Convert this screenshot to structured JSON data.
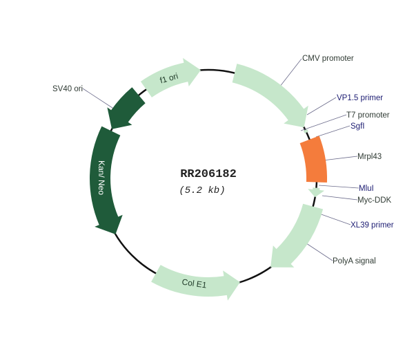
{
  "plasmid": {
    "name": "RR206182",
    "size": "(5.2 kb)"
  },
  "features": {
    "f1_ori": "f1 ori",
    "kan_neo": "Kan/ Neo",
    "col_e1": "Col E1"
  },
  "labels": {
    "sv40_ori": "SV40 ori",
    "cmv_promoter": "CMV promoter",
    "vp15_primer": "VP1.5 primer",
    "t7_promoter": "T7 promoter",
    "sgfi": "SgfI",
    "mrpl43": "Mrpl43",
    "mlui": "MluI",
    "myc_ddk": "Myc-DDK",
    "xl39_primer": "XL39 primer",
    "polya_signal": "PolyA signal"
  },
  "colors": {
    "light_feature": "#c6e7cb",
    "dark_feature": "#1f5b3a",
    "insert": "#f47c3c",
    "backbone": "#111111",
    "site_label": "#1c1c72",
    "feature_label": "#2f3a33"
  }
}
